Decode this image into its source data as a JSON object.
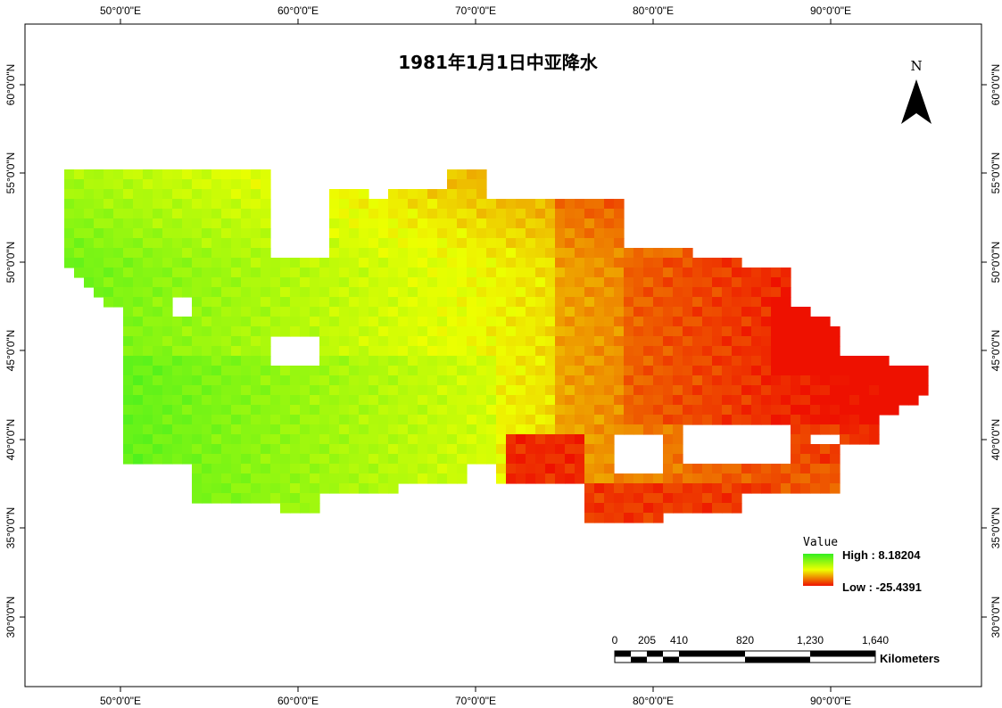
{
  "map": {
    "title": "1981年1月1日中亚降水",
    "north_label": "N",
    "longitude_ticks": [
      "50°0'0\"E",
      "60°0'0\"E",
      "70°0'0\"E",
      "80°0'0\"E",
      "90°0'0\"E"
    ],
    "latitude_ticks": [
      "60°0'0\"N",
      "55°0'0\"N",
      "50°0'0\"N",
      "45°0'0\"N",
      "40°0'0\"N",
      "35°0'0\"N",
      "30°0'0\"N"
    ],
    "legend": {
      "title": "Value",
      "high_label": "High : 8.18204",
      "low_label": "Low : -25.4391",
      "high_value": 8.18204,
      "low_value": -25.4391,
      "high_color": "#33ee22",
      "mid_color": "#eeff00",
      "low_color": "#ee1100"
    },
    "scale_bar": {
      "labels": [
        "0",
        "205",
        "410",
        "820",
        "1,230",
        "1,640"
      ],
      "unit": "Kilometers"
    }
  }
}
